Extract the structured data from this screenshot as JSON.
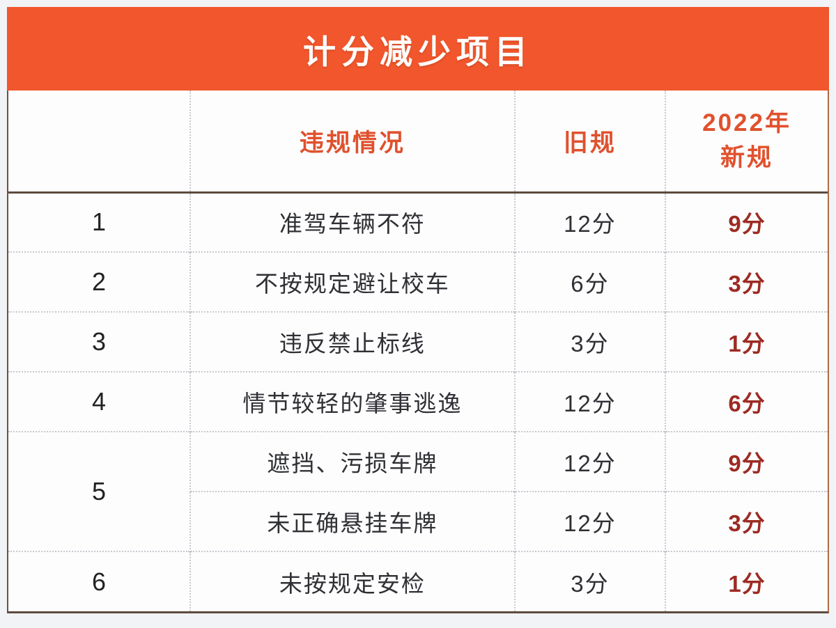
{
  "banner": {
    "title": "计分减少项目"
  },
  "table": {
    "columns": {
      "no": "",
      "violation": "违规情况",
      "old": "旧规",
      "new_line1": "2022年",
      "new_line2": "新规"
    },
    "rows": [
      {
        "no": "1",
        "violation": "准驾车辆不符",
        "old": "12分",
        "new": "9分"
      },
      {
        "no": "2",
        "violation": "不按规定避让校车",
        "old": "6分",
        "new": "3分"
      },
      {
        "no": "3",
        "violation": "违反禁止标线",
        "old": "3分",
        "new": "1分"
      },
      {
        "no": "4",
        "violation": "情节较轻的肇事逃逸",
        "old": "12分",
        "new": "6分"
      },
      {
        "no": "5",
        "violation": "遮挡、污损车牌",
        "old": "12分",
        "new": "9分"
      },
      {
        "violation": "未正确悬挂车牌",
        "old": "12分",
        "new": "3分"
      },
      {
        "no": "6",
        "violation": "未按规定安检",
        "old": "3分",
        "new": "1分"
      }
    ]
  },
  "colors": {
    "banner_background": "#f1562c",
    "header_text": "#e0512d",
    "new_score_text": "#9c2b23",
    "body_text": "#2f3034",
    "dotted_divider": "#c7c9cf",
    "solid_divider": "#5e4a3e"
  }
}
